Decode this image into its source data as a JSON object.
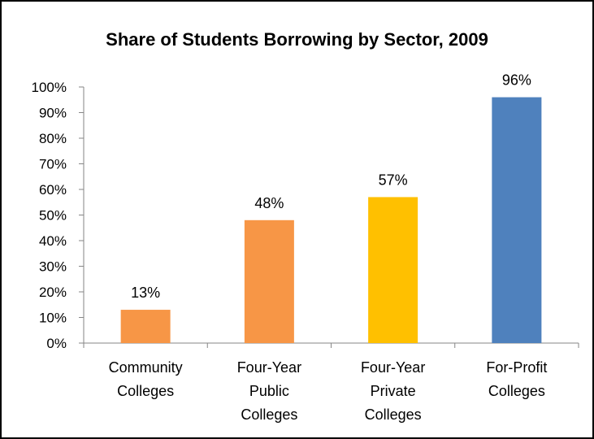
{
  "chart_data": {
    "type": "bar",
    "title": "Share of Students Borrowing by Sector, 2009",
    "categories": [
      [
        "Community",
        "Colleges"
      ],
      [
        "Four-Year",
        "Public",
        "Colleges"
      ],
      [
        "Four-Year",
        "Private",
        "Colleges"
      ],
      [
        "For-Profit",
        "Colleges"
      ]
    ],
    "values": [
      13,
      48,
      57,
      96
    ],
    "data_labels": [
      "13%",
      "48%",
      "57%",
      "96%"
    ],
    "bar_colors": [
      "#F79646",
      "#F79646",
      "#FFC000",
      "#4F81BD"
    ],
    "ylim": [
      0,
      100
    ],
    "yticks": [
      "0%",
      "10%",
      "20%",
      "30%",
      "40%",
      "50%",
      "60%",
      "70%",
      "80%",
      "90%",
      "100%"
    ],
    "xlabel": "",
    "ylabel": "",
    "grid": false,
    "legend": "none"
  }
}
